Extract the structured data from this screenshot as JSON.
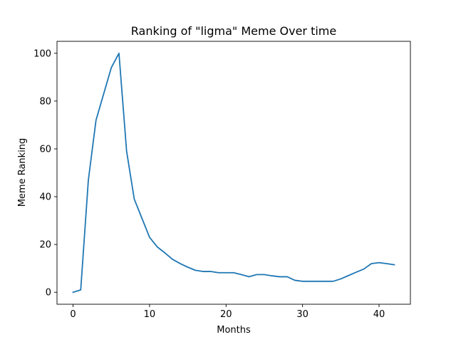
{
  "chart_data": {
    "type": "line",
    "title": "Ranking of \"ligma\" Meme Over time",
    "xlabel": "Months",
    "ylabel": "Meme Ranking",
    "xlim": [
      -2.1,
      44.1
    ],
    "ylim": [
      -5,
      105
    ],
    "xticks": [
      0,
      10,
      20,
      30,
      40
    ],
    "yticks": [
      0,
      20,
      40,
      60,
      80,
      100
    ],
    "grid": false,
    "series": [
      {
        "color": "#1f77b4",
        "x": [
          0,
          1,
          2,
          3,
          4,
          5,
          6,
          7,
          8,
          9,
          10,
          11,
          12,
          13,
          14,
          15,
          16,
          17,
          18,
          19,
          20,
          21,
          22,
          23,
          24,
          25,
          26,
          27,
          28,
          29,
          30,
          31,
          32,
          33,
          34,
          35,
          36,
          37,
          38,
          39,
          40,
          41,
          42
        ],
        "y": [
          0,
          1,
          47,
          72,
          83,
          94,
          100,
          59,
          39,
          31,
          23,
          19,
          16.5,
          13.8,
          12,
          10.5,
          9.2,
          8.7,
          8.7,
          8.2,
          8.2,
          8.2,
          7.4,
          6.5,
          7.4,
          7.4,
          6.9,
          6.5,
          6.5,
          5,
          4.6,
          4.6,
          4.6,
          4.6,
          4.6,
          5.6,
          7,
          8.4,
          9.7,
          12,
          12.4,
          12,
          11.5
        ]
      }
    ]
  }
}
